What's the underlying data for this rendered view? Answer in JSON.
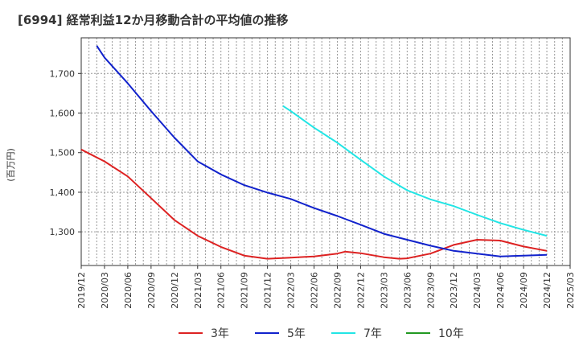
{
  "chart_data": {
    "type": "line",
    "title": "[6994]  経常利益12か月移動合計の平均値の推移",
    "ylabel": "(百万円)",
    "xlabel": "",
    "ylim": [
      1215,
      1790
    ],
    "yticks": [
      1300,
      1400,
      1500,
      1600,
      1700
    ],
    "ytick_labels": [
      "1,300",
      "1,400",
      "1,500",
      "1,600",
      "1,700"
    ],
    "xlim": [
      "2019/12",
      "2025/03"
    ],
    "xtick_labels": [
      "2019/12",
      "2020/03",
      "2020/06",
      "2020/09",
      "2020/12",
      "2021/03",
      "2021/06",
      "2021/09",
      "2021/12",
      "2022/03",
      "2022/06",
      "2022/09",
      "2022/12",
      "2023/03",
      "2023/06",
      "2023/09",
      "2023/12",
      "2024/03",
      "2024/06",
      "2024/09",
      "2024/12",
      "2025/03"
    ],
    "grid": true,
    "legend": "bottom",
    "series": [
      {
        "name": "3年",
        "color": "#dd2222",
        "points": [
          [
            "2019/12",
            1508
          ],
          [
            "2020/03",
            1478
          ],
          [
            "2020/06",
            1440
          ],
          [
            "2020/09",
            1385
          ],
          [
            "2020/12",
            1330
          ],
          [
            "2021/03",
            1290
          ],
          [
            "2021/06",
            1262
          ],
          [
            "2021/09",
            1240
          ],
          [
            "2021/12",
            1232
          ],
          [
            "2022/03",
            1235
          ],
          [
            "2022/06",
            1238
          ],
          [
            "2022/09",
            1245
          ],
          [
            "2022/10",
            1250
          ],
          [
            "2022/12",
            1246
          ],
          [
            "2023/03",
            1236
          ],
          [
            "2023/05",
            1232
          ],
          [
            "2023/06",
            1233
          ],
          [
            "2023/09",
            1245
          ],
          [
            "2023/12",
            1267
          ],
          [
            "2024/03",
            1280
          ],
          [
            "2024/06",
            1278
          ],
          [
            "2024/09",
            1263
          ],
          [
            "2024/12",
            1252
          ]
        ]
      },
      {
        "name": "5年",
        "color": "#1122cc",
        "points": [
          [
            "2020/02",
            1770
          ],
          [
            "2020/03",
            1740
          ],
          [
            "2020/06",
            1675
          ],
          [
            "2020/09",
            1605
          ],
          [
            "2020/12",
            1538
          ],
          [
            "2021/03",
            1478
          ],
          [
            "2021/06",
            1445
          ],
          [
            "2021/09",
            1418
          ],
          [
            "2021/12",
            1399
          ],
          [
            "2022/03",
            1383
          ],
          [
            "2022/06",
            1360
          ],
          [
            "2022/09",
            1340
          ],
          [
            "2022/12",
            1318
          ],
          [
            "2023/03",
            1295
          ],
          [
            "2023/06",
            1280
          ],
          [
            "2023/09",
            1265
          ],
          [
            "2023/12",
            1252
          ],
          [
            "2024/03",
            1245
          ],
          [
            "2024/06",
            1238
          ],
          [
            "2024/09",
            1240
          ],
          [
            "2024/12",
            1242
          ]
        ]
      },
      {
        "name": "7年",
        "color": "#22e5e5",
        "points": [
          [
            "2022/02",
            1618
          ],
          [
            "2022/03",
            1605
          ],
          [
            "2022/06",
            1563
          ],
          [
            "2022/09",
            1525
          ],
          [
            "2022/12",
            1482
          ],
          [
            "2023/03",
            1440
          ],
          [
            "2023/06",
            1405
          ],
          [
            "2023/09",
            1382
          ],
          [
            "2023/12",
            1365
          ],
          [
            "2024/03",
            1343
          ],
          [
            "2024/06",
            1322
          ],
          [
            "2024/09",
            1305
          ],
          [
            "2024/12",
            1290
          ]
        ]
      },
      {
        "name": "10年",
        "color": "#229922",
        "points": []
      }
    ]
  }
}
